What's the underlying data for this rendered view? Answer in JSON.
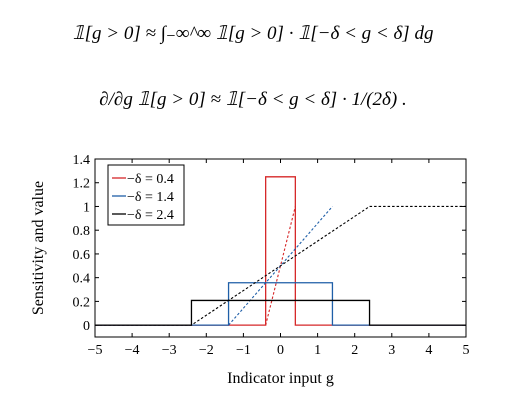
{
  "equations": {
    "eq1": "𝟙[g > 0] ≈ ∫₋∞^∞ 𝟙[g > 0] · 𝟙[−δ < g < δ] dg",
    "eq2": "∂/∂g 𝟙[g > 0] ≈ 𝟙[−δ < g < δ] · 1/(2δ) ."
  },
  "chart_data": {
    "type": "line",
    "xlabel": "Indicator input g",
    "ylabel": "Sensitivity and value",
    "xlim": [
      -5,
      5
    ],
    "ylim": [
      -0.1,
      1.4
    ],
    "xticks": [
      -5,
      -4,
      -3,
      -2,
      -1,
      0,
      1,
      2,
      3,
      4,
      5
    ],
    "xtick_labels": [
      "−5",
      "−4",
      "−3",
      "−2",
      "−1",
      "0",
      "1",
      "2",
      "3",
      "4",
      "5"
    ],
    "yticks": [
      0,
      0.2,
      0.4,
      0.6,
      0.8,
      1.0,
      1.2,
      1.4
    ],
    "ytick_labels": [
      "0",
      "0.2",
      "0.4",
      "0.6",
      "0.8",
      "1",
      "1.2",
      "1.4"
    ],
    "grid": false,
    "legend_position": "top-left",
    "series": [
      {
        "name": "−δ = 0.4",
        "delta": 0.4,
        "color": "#d62728",
        "sensitivity": {
          "x": [
            -5,
            -0.4,
            -0.4,
            0.4,
            0.4,
            5
          ],
          "y": [
            0,
            0,
            1.25,
            1.25,
            0,
            0
          ]
        },
        "value": {
          "x": [
            -0.4,
            0.4
          ],
          "y": [
            0,
            1
          ]
        }
      },
      {
        "name": "−δ = 1.4",
        "delta": 1.4,
        "color": "#1f5fa8",
        "sensitivity": {
          "x": [
            -5,
            -1.4,
            -1.4,
            1.4,
            1.4,
            5
          ],
          "y": [
            0,
            0,
            0.357,
            0.357,
            0,
            0
          ]
        },
        "value": {
          "x": [
            -1.4,
            1.4
          ],
          "y": [
            0,
            1
          ]
        }
      },
      {
        "name": "−δ = 2.4",
        "delta": 2.4,
        "color": "#000000",
        "sensitivity": {
          "x": [
            -5,
            -2.4,
            -2.4,
            2.4,
            2.4,
            5
          ],
          "y": [
            0,
            0,
            0.208,
            0.208,
            0,
            0
          ]
        },
        "value": {
          "x": [
            -5,
            -2.4,
            2.4,
            5
          ],
          "y": [
            0,
            0,
            1,
            1
          ]
        }
      }
    ]
  }
}
